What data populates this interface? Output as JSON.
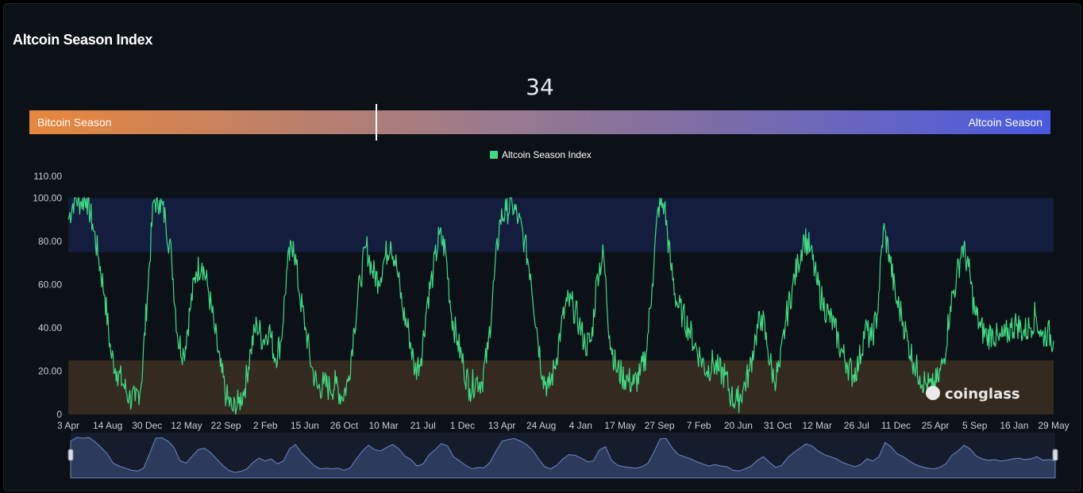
{
  "page": {
    "title": "Altcoin Season Index",
    "current_value": "34",
    "current_index": 34,
    "bar_left_label": "Bitcoin Season",
    "bar_right_label": "Altcoin Season",
    "watermark": "coinglass"
  },
  "colors": {
    "line": "#3ddc84",
    "altcoin_zone": "#141d3e",
    "bitcoin_zone": "#352a20",
    "navigator_fill": "#2c3a5c",
    "navigator_line": "#6d86c7"
  },
  "chart_data": {
    "type": "line",
    "title": "",
    "xlabel": "",
    "ylabel": "",
    "ylim": [
      0,
      110
    ],
    "y_ticks": [
      "0",
      "20.00",
      "40.00",
      "60.00",
      "80.00",
      "100.00",
      "110.00"
    ],
    "legend": {
      "position": "top-center",
      "entries": [
        "Altcoin Season Index"
      ]
    },
    "bands": [
      {
        "from": 75,
        "to": 100,
        "name": "altcoin-season-zone"
      },
      {
        "from": 0,
        "to": 25,
        "name": "bitcoin-season-zone"
      }
    ],
    "x_tick_labels": [
      "3 Apr",
      "14 Aug",
      "30 Dec",
      "12 May",
      "22 Sep",
      "2 Feb",
      "15 Jun",
      "26 Oct",
      "10 Mar",
      "21 Jul",
      "1 Dec",
      "13 Apr",
      "24 Aug",
      "4 Jan",
      "17 May",
      "27 Sep",
      "7 Feb",
      "20 Jun",
      "31 Oct",
      "12 Mar",
      "26 Jul",
      "11 Dec",
      "25 Apr",
      "5 Sep",
      "16 Jan",
      "29 May"
    ],
    "series": [
      {
        "name": "Altcoin Season Index",
        "values": [
          90,
          100,
          98,
          100,
          88,
          72,
          55,
          28,
          20,
          14,
          8,
          6,
          14,
          55,
          98,
          99,
          90,
          72,
          35,
          28,
          48,
          66,
          70,
          58,
          40,
          22,
          8,
          2,
          5,
          12,
          30,
          42,
          34,
          40,
          26,
          34,
          68,
          80,
          56,
          40,
          22,
          12,
          14,
          12,
          14,
          8,
          15,
          40,
          62,
          78,
          66,
          62,
          72,
          80,
          68,
          48,
          38,
          20,
          26,
          52,
          66,
          83,
          76,
          46,
          34,
          22,
          12,
          16,
          15,
          30,
          62,
          90,
          94,
          97,
          90,
          80,
          65,
          40,
          18,
          12,
          22,
          40,
          52,
          50,
          42,
          32,
          34,
          65,
          74,
          36,
          22,
          18,
          16,
          14,
          18,
          28,
          60,
          96,
          97,
          70,
          52,
          46,
          40,
          32,
          26,
          20,
          24,
          20,
          18,
          8,
          6,
          12,
          20,
          36,
          46,
          30,
          16,
          22,
          44,
          58,
          70,
          82,
          76,
          62,
          52,
          46,
          40,
          30,
          24,
          18,
          24,
          40,
          34,
          46,
          86,
          74,
          54,
          46,
          34,
          24,
          18,
          14,
          12,
          16,
          26,
          50,
          62,
          78,
          68,
          48,
          40,
          36,
          38,
          34,
          36,
          40,
          42,
          38,
          40,
          46,
          36,
          38,
          34
        ]
      }
    ]
  }
}
